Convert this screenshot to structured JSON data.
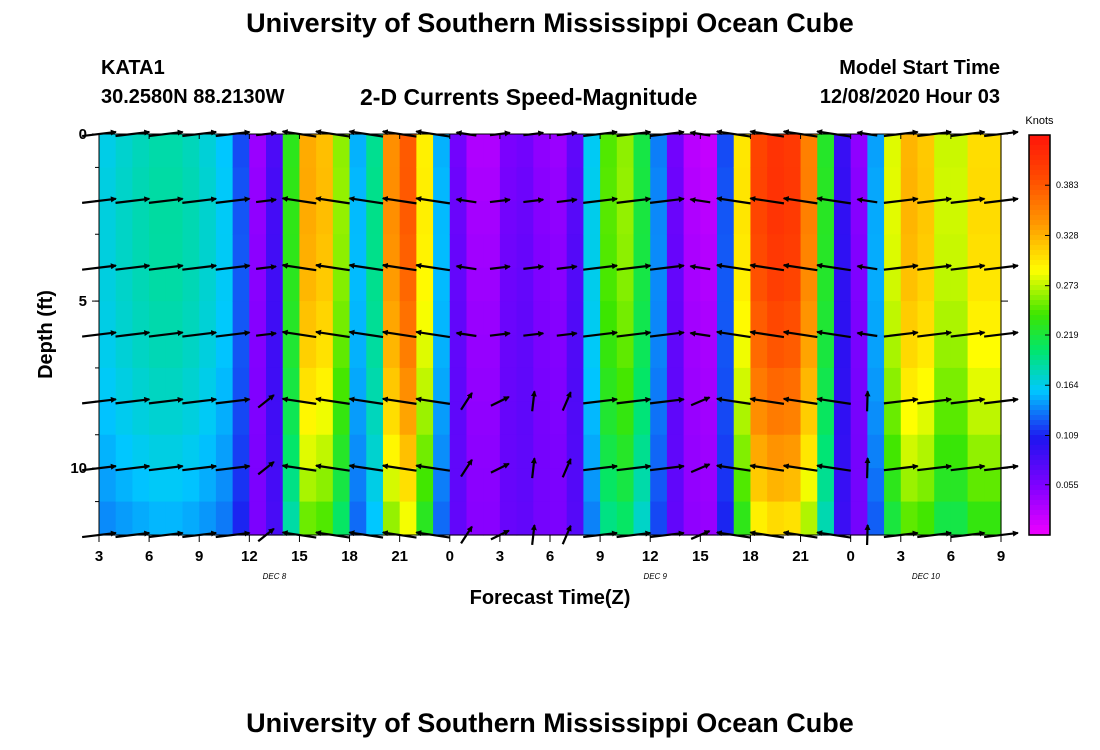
{
  "header": {
    "title": "University of Southern Mississippi Ocean Cube",
    "station_id": "KATA1",
    "coordinates": "30.2580N 88.2130W",
    "subtitle": "2-D Currents Speed-Magnitude",
    "model_start_label": "Model Start Time",
    "model_start_value": "12/08/2020 Hour 03"
  },
  "footer": {
    "title": "University of Southern Mississippi Ocean Cube"
  },
  "chart_data": {
    "type": "heatmap",
    "title": "2-D Currents Speed-Magnitude",
    "xlabel": "Forecast Time(Z)",
    "ylabel": "Depth (ft)",
    "x_range_hours": [
      0,
      54
    ],
    "ylim": [
      0,
      12
    ],
    "x_ticks": [
      {
        "h": 0,
        "label": "3"
      },
      {
        "h": 3,
        "label": "6"
      },
      {
        "h": 6,
        "label": "9"
      },
      {
        "h": 9,
        "label": "12"
      },
      {
        "h": 12,
        "label": "15"
      },
      {
        "h": 15,
        "label": "18"
      },
      {
        "h": 18,
        "label": "21"
      },
      {
        "h": 21,
        "label": "0"
      },
      {
        "h": 24,
        "label": "3"
      },
      {
        "h": 27,
        "label": "6"
      },
      {
        "h": 30,
        "label": "9"
      },
      {
        "h": 33,
        "label": "12"
      },
      {
        "h": 36,
        "label": "15"
      },
      {
        "h": 39,
        "label": "18"
      },
      {
        "h": 42,
        "label": "21"
      },
      {
        "h": 45,
        "label": "0"
      },
      {
        "h": 48,
        "label": "3"
      },
      {
        "h": 51,
        "label": "6"
      },
      {
        "h": 54,
        "label": "9"
      }
    ],
    "y_ticks": [
      {
        "v": 0,
        "label": "0"
      },
      {
        "v": 5,
        "label": "5"
      },
      {
        "v": 10,
        "label": "10"
      }
    ],
    "date_labels": [
      {
        "h": 10.5,
        "label": "DEC 8"
      },
      {
        "h": 33.3,
        "label": "DEC 9"
      },
      {
        "h": 49.5,
        "label": "DEC 10"
      }
    ],
    "colorbar": {
      "unit": "Knots",
      "min": 0.0,
      "max": 0.438,
      "ticks": [
        "0.055",
        "0.109",
        "0.164",
        "0.219",
        "0.273",
        "0.328",
        "0.383"
      ]
    },
    "speed_profile": {
      "description_hours": "surface speed (knots) at each forecast hour",
      "hours": [
        0,
        2,
        4,
        6,
        8,
        8.5,
        9,
        10,
        11,
        12,
        13,
        14,
        15,
        16,
        17,
        18,
        19,
        20,
        21,
        22,
        23,
        24,
        25,
        26,
        27,
        28,
        29,
        30,
        31,
        32,
        33,
        34,
        35,
        36,
        37,
        38,
        39,
        40,
        41,
        42,
        43,
        44,
        45,
        46,
        47,
        48,
        49,
        50,
        51,
        52,
        53,
        54
      ],
      "values": [
        0.16,
        0.175,
        0.185,
        0.175,
        0.15,
        0.12,
        0.06,
        0.02,
        0.14,
        0.32,
        0.34,
        0.3,
        0.22,
        0.08,
        0.3,
        0.39,
        0.37,
        0.22,
        0.08,
        0.04,
        0.02,
        0.04,
        0.07,
        0.05,
        0.04,
        0.04,
        0.1,
        0.22,
        0.27,
        0.25,
        0.18,
        0.09,
        0.03,
        0.02,
        0.02,
        0.22,
        0.38,
        0.41,
        0.41,
        0.4,
        0.31,
        0.14,
        0.04,
        0.05,
        0.24,
        0.32,
        0.33,
        0.3,
        0.25,
        0.3,
        0.31,
        0.3
      ]
    },
    "arrow_depths_ft": [
      0,
      2,
      4,
      6,
      8,
      10,
      12
    ]
  }
}
